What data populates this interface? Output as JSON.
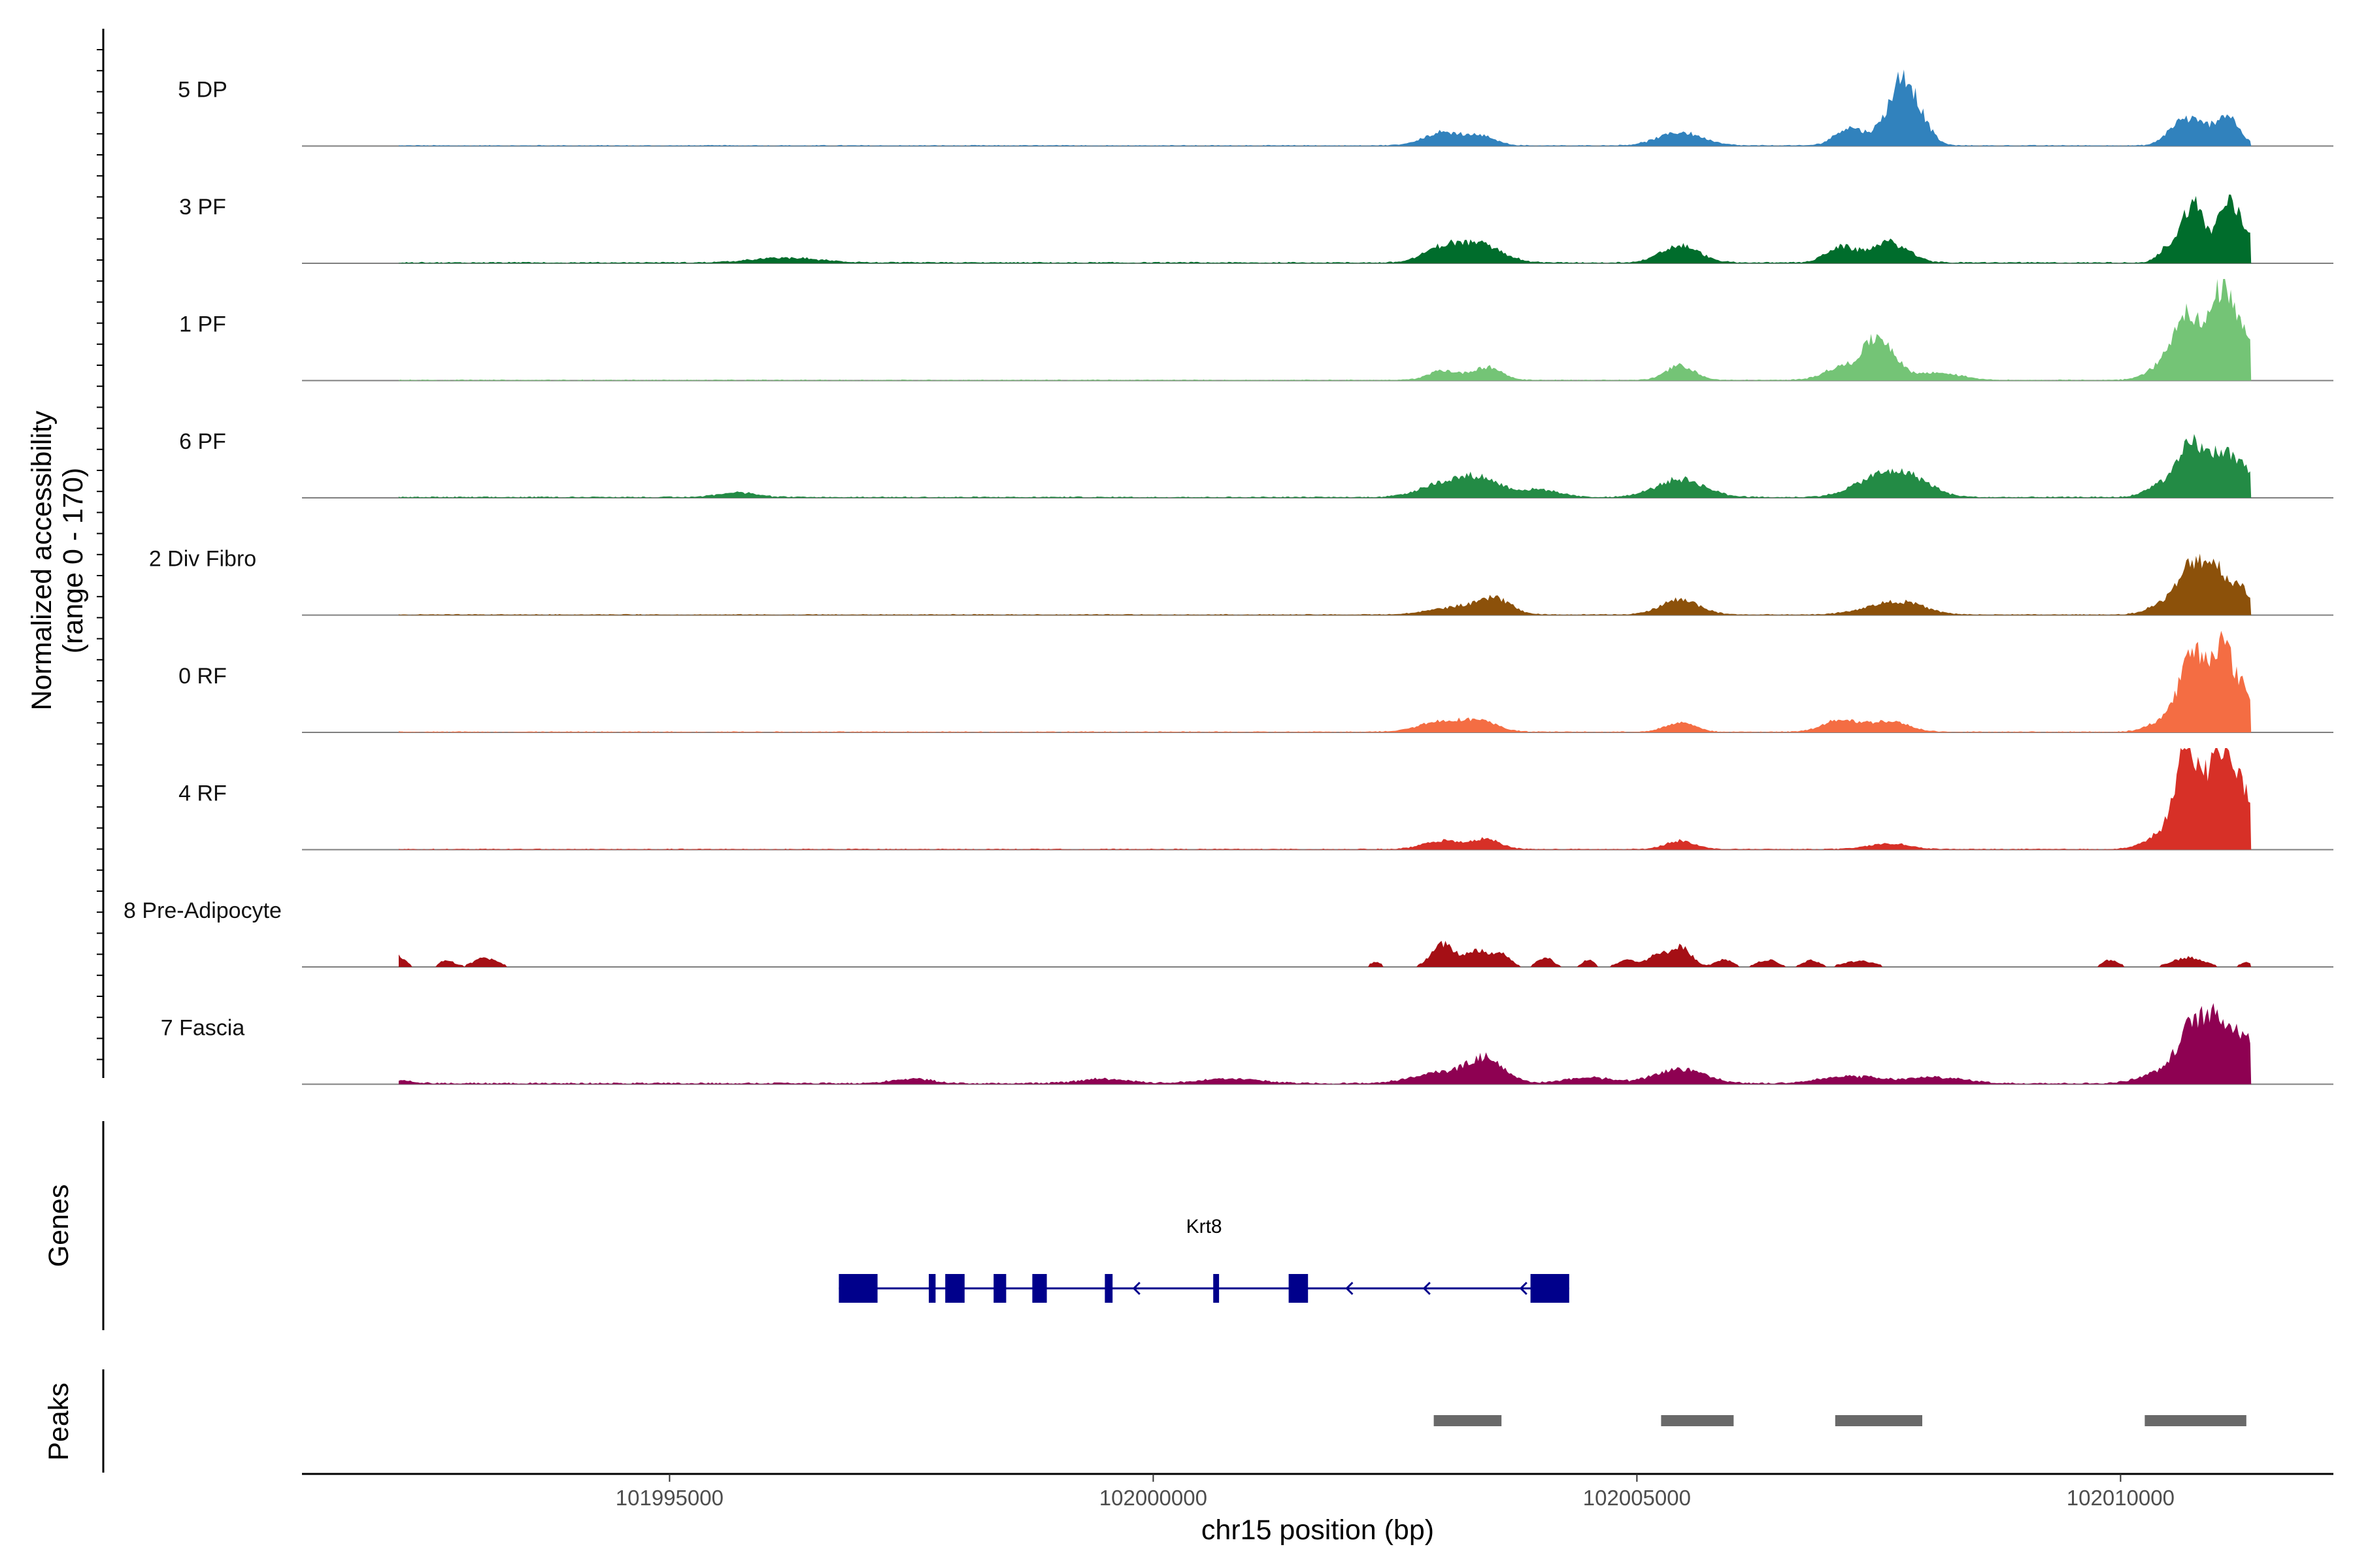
{
  "chart_data": {
    "type": "area",
    "chromosome": "chr15",
    "xlabel": "chr15 position (bp)",
    "ylabel": [
      "Normalized accessibility",
      "(range 0 - 170)"
    ],
    "ylim": [
      0,
      170
    ],
    "xlim": [
      101991200,
      102012200
    ],
    "x_ticks": [
      101995000,
      102000000,
      102005000,
      102010000
    ],
    "x_tick_labels": [
      "101995000",
      "102000000",
      "102005000",
      "102010000"
    ],
    "coverage_range": [
      101992200,
      102011350
    ],
    "series": [
      {
        "name": "5 DP",
        "color": "#3182bd",
        "peaks": [
          [
            102003000,
            200,
            22
          ],
          [
            102003400,
            150,
            14
          ],
          [
            102005450,
            230,
            22
          ],
          [
            102007200,
            150,
            30
          ],
          [
            102007600,
            130,
            36
          ],
          [
            102007750,
            110,
            75
          ],
          [
            102007900,
            130,
            45
          ],
          [
            102010600,
            130,
            32
          ],
          [
            102010800,
            130,
            28
          ],
          [
            102011100,
            120,
            50
          ]
        ],
        "baseline": 3
      },
      {
        "name": "3 PF",
        "color": "#006d2c",
        "peaks": [
          [
            101996200,
            350,
            8
          ],
          [
            102003000,
            200,
            25
          ],
          [
            102003400,
            220,
            28
          ],
          [
            102005450,
            200,
            28
          ],
          [
            102007100,
            150,
            25
          ],
          [
            102007600,
            200,
            34
          ],
          [
            102010500,
            100,
            25
          ],
          [
            102010750,
            110,
            100
          ],
          [
            102011100,
            110,
            95
          ],
          [
            102011300,
            100,
            40
          ]
        ],
        "baseline": 4
      },
      {
        "name": "1 PF",
        "color": "#74c476",
        "peaks": [
          [
            102003000,
            150,
            16
          ],
          [
            102003450,
            150,
            22
          ],
          [
            102005450,
            150,
            24
          ],
          [
            102007100,
            180,
            20
          ],
          [
            102007500,
            160,
            70
          ],
          [
            102008100,
            250,
            12
          ],
          [
            102010500,
            180,
            30
          ],
          [
            102010700,
            130,
            100
          ],
          [
            102011050,
            120,
            150
          ],
          [
            102011300,
            100,
            60
          ]
        ],
        "baseline": 3
      },
      {
        "name": "6 PF",
        "color": "#238b45",
        "peaks": [
          [
            101995700,
            200,
            8
          ],
          [
            102003000,
            250,
            22
          ],
          [
            102003400,
            220,
            28
          ],
          [
            102004000,
            200,
            12
          ],
          [
            102005450,
            250,
            30
          ],
          [
            102007500,
            260,
            32
          ],
          [
            102007850,
            220,
            25
          ],
          [
            102010500,
            180,
            28
          ],
          [
            102010750,
            120,
            80
          ],
          [
            102011050,
            120,
            75
          ],
          [
            102011300,
            100,
            40
          ]
        ],
        "baseline": 4
      },
      {
        "name": "2 Div Fibro",
        "color": "#8c510a",
        "peaks": [
          [
            102003200,
            300,
            14
          ],
          [
            102003550,
            150,
            22
          ],
          [
            102005450,
            200,
            25
          ],
          [
            102007500,
            250,
            12
          ],
          [
            102007800,
            220,
            15
          ],
          [
            102010450,
            160,
            18
          ],
          [
            102010750,
            140,
            80
          ],
          [
            102011000,
            120,
            65
          ],
          [
            102011250,
            100,
            40
          ]
        ],
        "baseline": 3
      },
      {
        "name": "0 RF",
        "color": "#f46d43",
        "peaks": [
          [
            102003000,
            250,
            18
          ],
          [
            102003400,
            180,
            14
          ],
          [
            102005450,
            150,
            16
          ],
          [
            102007100,
            180,
            20
          ],
          [
            102007600,
            200,
            18
          ],
          [
            102010500,
            180,
            22
          ],
          [
            102010750,
            130,
            120
          ],
          [
            102011050,
            120,
            140
          ],
          [
            102011300,
            100,
            55
          ]
        ],
        "baseline": 3
      },
      {
        "name": "4 RF",
        "color": "#d73027",
        "peaks": [
          [
            102003000,
            200,
            14
          ],
          [
            102003450,
            150,
            16
          ],
          [
            102005450,
            150,
            14
          ],
          [
            102007600,
            200,
            10
          ],
          [
            102010450,
            180,
            25
          ],
          [
            102010700,
            120,
            165
          ],
          [
            102011050,
            130,
            175
          ],
          [
            102011300,
            100,
            70
          ]
        ],
        "baseline": 3
      },
      {
        "name": "8 Pre-Adipocyte",
        "color": "#a50f15",
        "peaks": [
          [
            101992200,
            70,
            18
          ],
          [
            101992700,
            70,
            12
          ],
          [
            101993100,
            120,
            15
          ],
          [
            102002300,
            60,
            8
          ],
          [
            102003000,
            120,
            38
          ],
          [
            102003350,
            110,
            28
          ],
          [
            102003600,
            90,
            22
          ],
          [
            102004050,
            80,
            16
          ],
          [
            102004500,
            60,
            12
          ],
          [
            102004900,
            100,
            12
          ],
          [
            102005200,
            100,
            18
          ],
          [
            102005450,
            110,
            35
          ],
          [
            102005900,
            90,
            12
          ],
          [
            102006350,
            100,
            12
          ],
          [
            102006800,
            80,
            12
          ],
          [
            102007300,
            160,
            10
          ],
          [
            102009900,
            80,
            12
          ],
          [
            102010700,
            160,
            16
          ],
          [
            102011300,
            60,
            8
          ]
        ],
        "baseline": 0
      },
      {
        "name": "7 Fascia",
        "color": "#8e0152",
        "peaks": [
          [
            101992200,
            150,
            5
          ],
          [
            101997500,
            200,
            8
          ],
          [
            101999500,
            250,
            8
          ],
          [
            102000800,
            300,
            8
          ],
          [
            102003000,
            300,
            18
          ],
          [
            102003450,
            180,
            38
          ],
          [
            102004500,
            250,
            10
          ],
          [
            102005450,
            250,
            24
          ],
          [
            102007200,
            300,
            12
          ],
          [
            102008100,
            300,
            10
          ],
          [
            102010400,
            200,
            18
          ],
          [
            102010750,
            150,
            90
          ],
          [
            102011050,
            150,
            95
          ],
          [
            102011300,
            100,
            55
          ]
        ],
        "baseline": 5
      }
    ],
    "genes": [
      {
        "name": "Krt8",
        "color": "#00008b",
        "start": 101996750,
        "end": 102004300,
        "strand": "-",
        "exons": [
          [
            101996750,
            101997150
          ],
          [
            101997680,
            101997750
          ],
          [
            101997850,
            101998050
          ],
          [
            101998350,
            101998480
          ],
          [
            101998750,
            101998900
          ],
          [
            101999500,
            101999580
          ],
          [
            102000620,
            102000680
          ],
          [
            102001400,
            102001600
          ],
          [
            102003900,
            102004300
          ]
        ],
        "arrow_positions": [
          101999800,
          102002000,
          102002800,
          102003800
        ]
      }
    ],
    "peaks": [
      [
        102002900,
        102003600
      ],
      [
        102005250,
        102006000
      ],
      [
        102007050,
        102007950
      ],
      [
        102010250,
        102011300
      ]
    ],
    "panel_titles": {
      "genes": "Genes",
      "peaks": "Peaks"
    },
    "peak_color": "#696969",
    "grid": false,
    "legend": "none"
  }
}
